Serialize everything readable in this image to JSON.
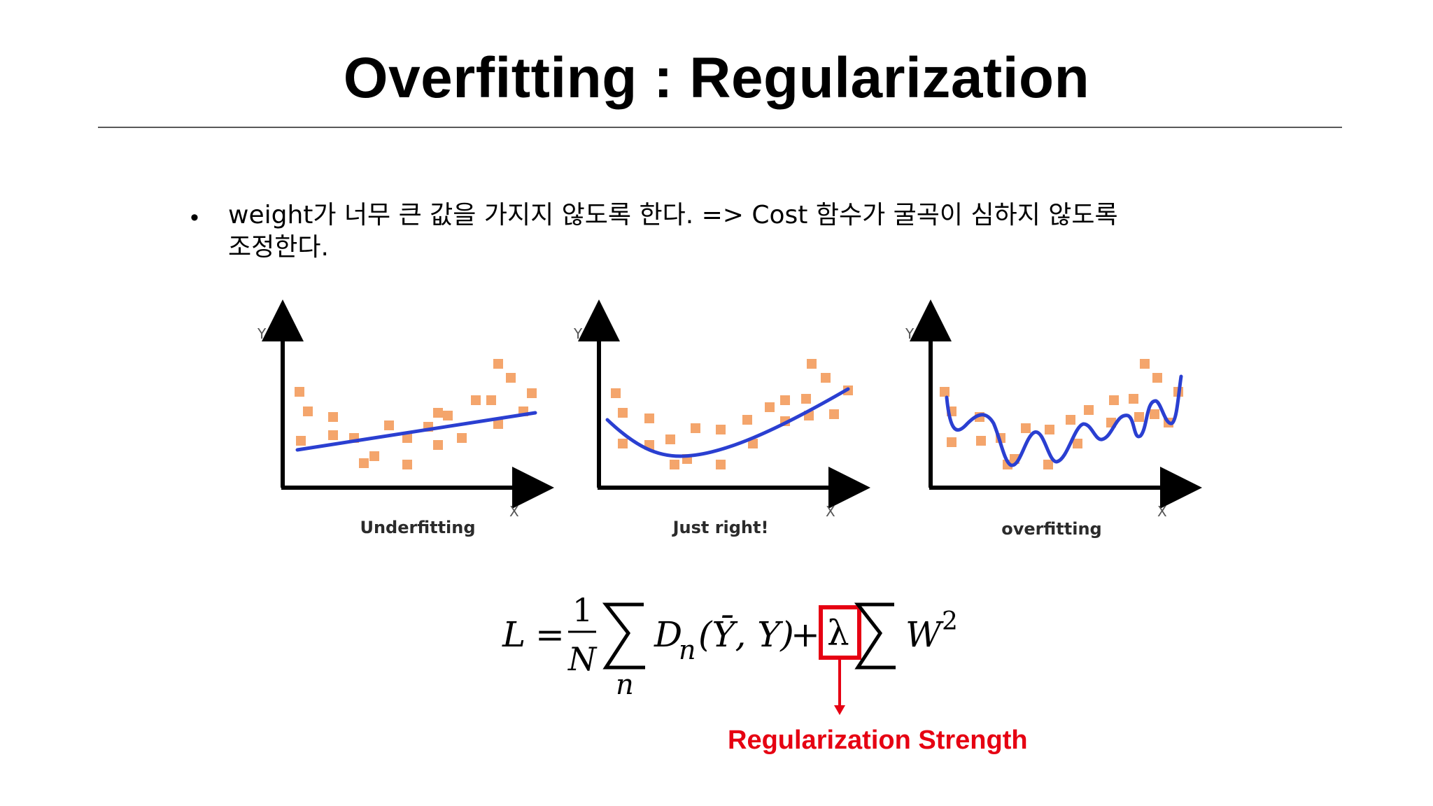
{
  "title": "Overfitting : Regularization",
  "bullet": {
    "text_line1": "weight가 너무 큰 값을 가지지 않도록 한다. => Cost 함수가 굴곡이 심하지 않도록",
    "text_line2": "조정한다."
  },
  "panels": [
    {
      "label": "Underfitting",
      "y_axis_label": "Y",
      "x_axis_label": "X"
    },
    {
      "label": "Just right!",
      "y_axis_label": "Y",
      "x_axis_label": "X"
    },
    {
      "label": "overfitting",
      "y_axis_label": "Y",
      "x_axis_label": "X"
    }
  ],
  "formula": {
    "lhs": "L",
    "equals": "=",
    "frac_num": "1",
    "frac_den": "N",
    "sum_index": "n",
    "loss_term": "D",
    "loss_sub": "n",
    "args": "(Ȳ, Y)",
    "plus": "+",
    "lambda": "λ",
    "weight_term": "W",
    "weight_exp": "2"
  },
  "callout": {
    "label": "Regularization Strength"
  },
  "colors": {
    "point": "#f4a56c",
    "curve": "#2a3fd1",
    "callout": "#e60012",
    "axis": "#000000"
  }
}
